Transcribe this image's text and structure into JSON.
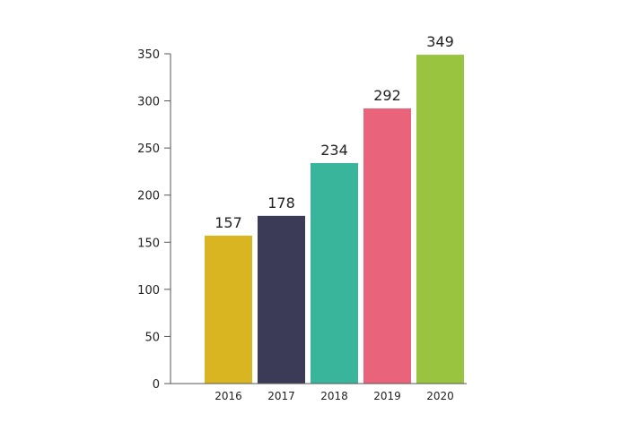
{
  "chart_data": {
    "type": "bar",
    "title": "",
    "xlabel": "",
    "ylabel": "",
    "categories": [
      "2016",
      "2017",
      "2018",
      "2019",
      "2020"
    ],
    "values": [
      157,
      178,
      234,
      292,
      349
    ],
    "data_labels": [
      "157",
      "178",
      "234",
      "292",
      "349"
    ],
    "colors": [
      "#d9b521",
      "#3b3b57",
      "#38b59b",
      "#e9637a",
      "#99c440"
    ],
    "ylim": [
      0,
      350
    ],
    "yticks": [
      0,
      50,
      100,
      150,
      200,
      250,
      300,
      350
    ],
    "ytick_labels": [
      "0",
      "50",
      "100",
      "150",
      "200",
      "250",
      "300",
      "350"
    ],
    "grid": false,
    "legend": "none"
  }
}
